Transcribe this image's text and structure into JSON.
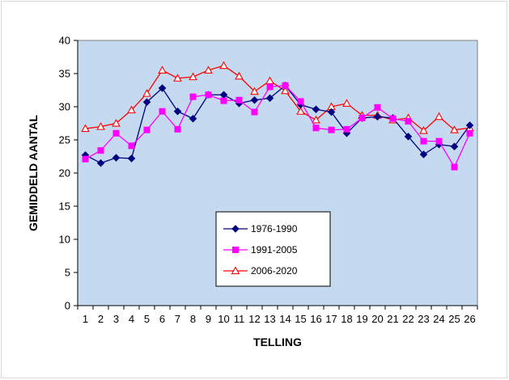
{
  "chart_data": {
    "type": "line",
    "title": "",
    "xlabel": "TELLING",
    "ylabel": "GEMIDDELD AANTAL",
    "categories": [
      "1",
      "2",
      "3",
      "4",
      "5",
      "6",
      "7",
      "8",
      "9",
      "10",
      "11",
      "12",
      "13",
      "14",
      "15",
      "16",
      "17",
      "18",
      "19",
      "20",
      "21",
      "22",
      "23",
      "24",
      "25",
      "26"
    ],
    "ylim": [
      0,
      40
    ],
    "yticks": [
      0,
      5,
      10,
      15,
      20,
      25,
      30,
      35,
      40
    ],
    "grid": false,
    "legend_position": "center",
    "plot_background": "#c5d9f1",
    "series": [
      {
        "name": "1976-1990",
        "color": "#000080",
        "marker": "diamond",
        "values": [
          22.7,
          21.5,
          22.3,
          22.2,
          30.7,
          32.8,
          29.3,
          28.2,
          31.8,
          31.8,
          30.5,
          31.0,
          31.3,
          33.2,
          30.3,
          29.6,
          29.2,
          26.0,
          28.3,
          28.5,
          28.3,
          25.5,
          22.8,
          24.3,
          24.0,
          27.2
        ]
      },
      {
        "name": "1991-2005",
        "color": "#ff00ff",
        "marker": "square",
        "values": [
          22.1,
          23.4,
          26.0,
          24.1,
          26.5,
          29.3,
          26.6,
          31.5,
          31.8,
          30.9,
          31.0,
          29.2,
          33.0,
          33.2,
          30.8,
          26.8,
          26.5,
          26.6,
          28.3,
          29.9,
          28.2,
          27.8,
          24.8,
          24.8,
          20.9,
          26.0
        ]
      },
      {
        "name": "2006-2020",
        "color": "#ff0000",
        "marker": "triangle-open",
        "values": [
          26.7,
          27.0,
          27.5,
          29.5,
          32.0,
          35.5,
          34.3,
          34.5,
          35.5,
          36.2,
          34.6,
          32.3,
          33.9,
          32.4,
          29.3,
          28.0,
          30.0,
          30.5,
          28.7,
          28.7,
          28.0,
          28.3,
          26.4,
          28.5,
          26.5,
          26.8
        ]
      }
    ]
  }
}
